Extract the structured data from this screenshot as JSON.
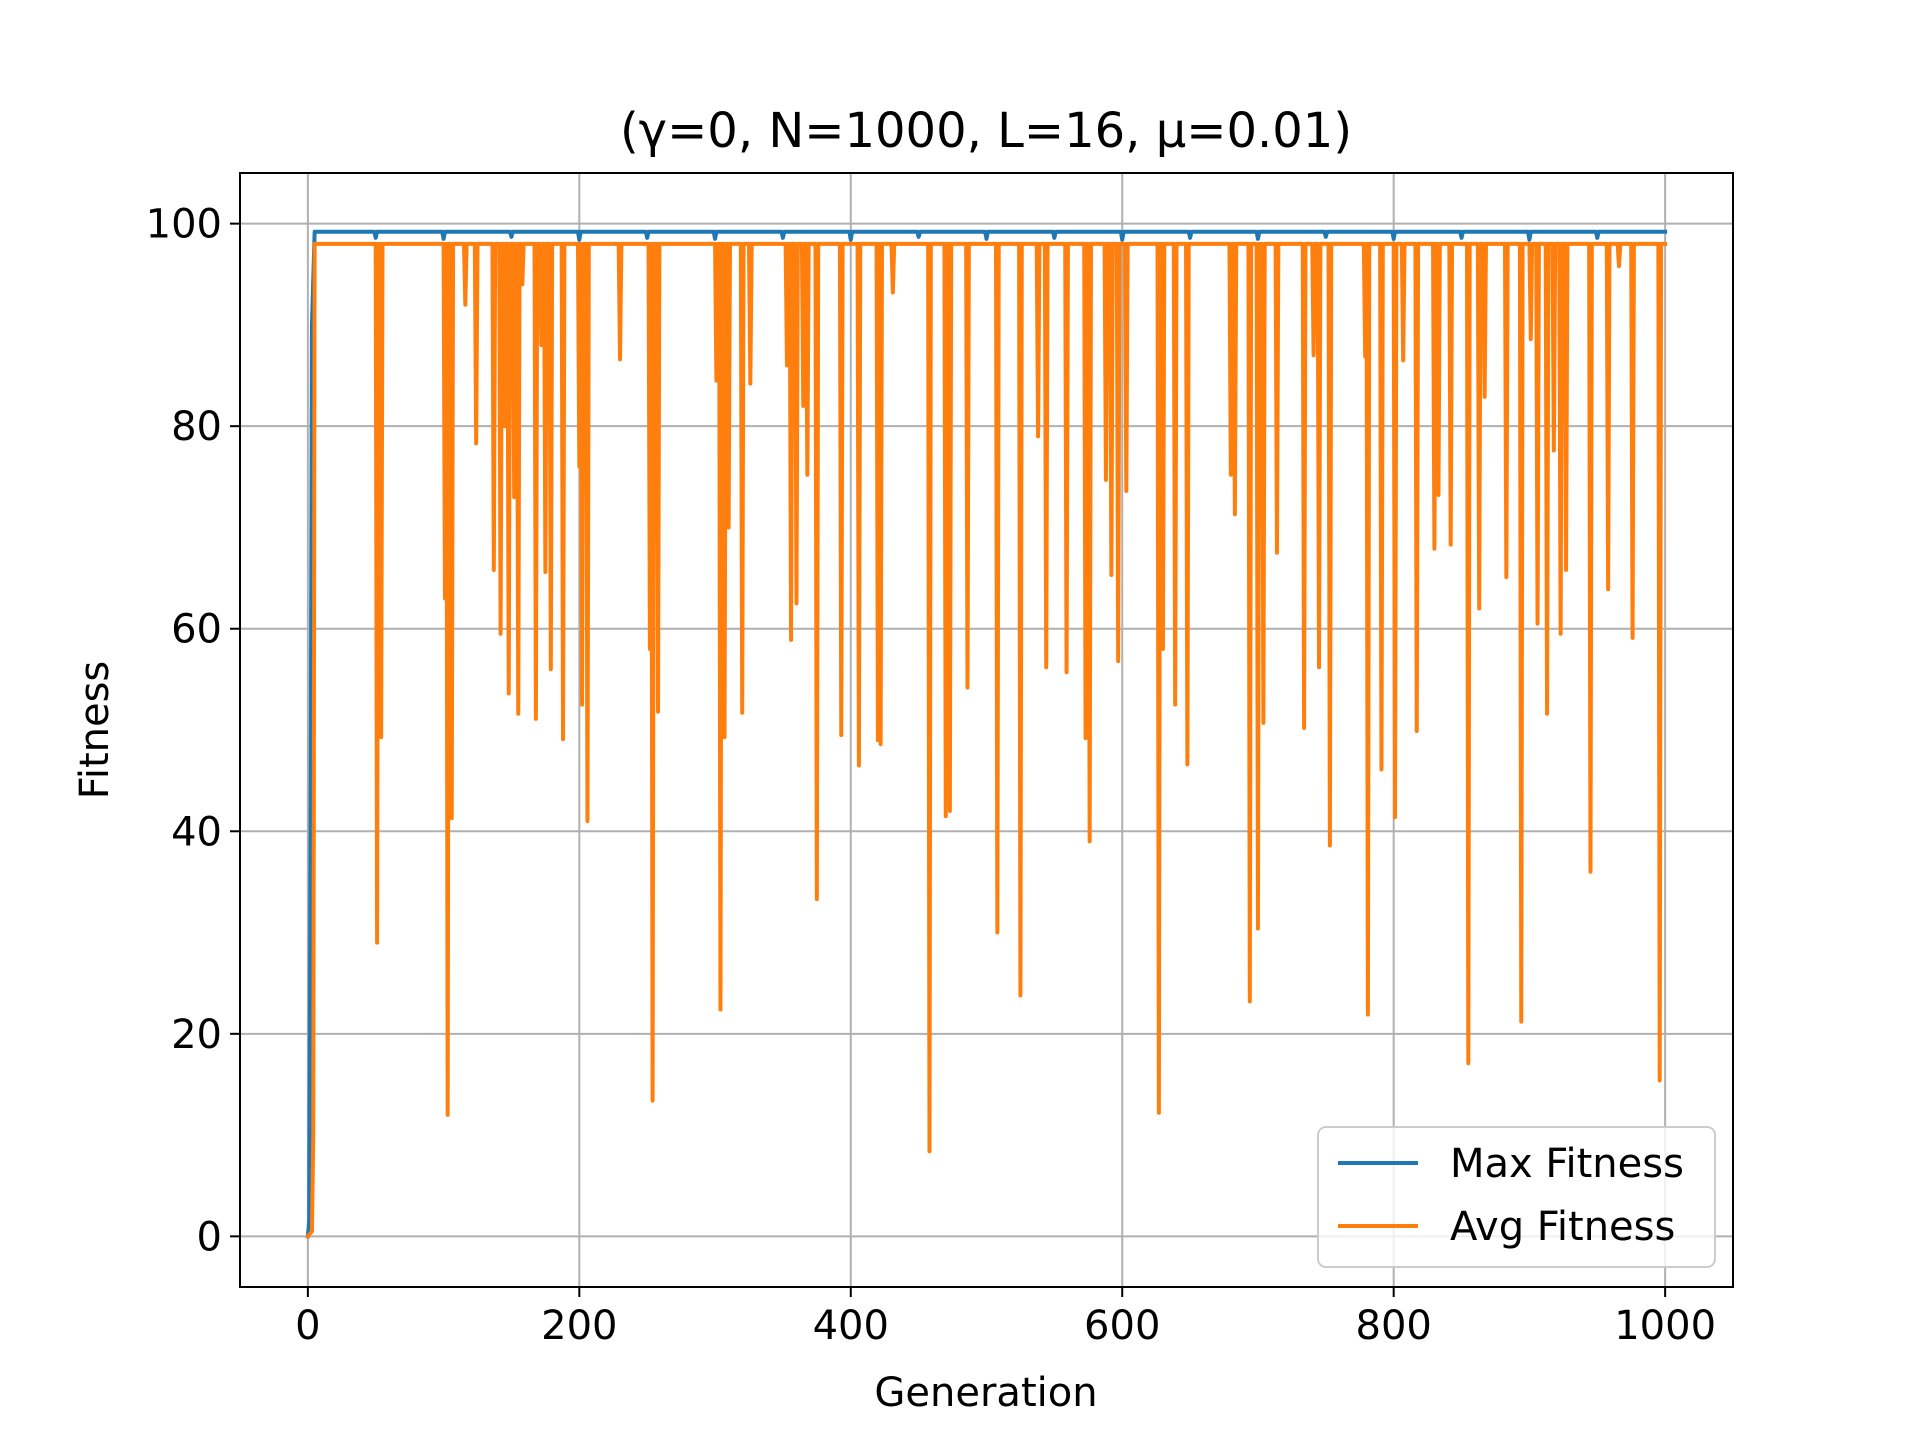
{
  "chart_data": {
    "type": "line",
    "title": "(γ=0, N=1000, L=16, μ=0.01)",
    "xlabel": "Generation",
    "ylabel": "Fitness",
    "xlim": [
      -50,
      1050
    ],
    "ylim": [
      -5,
      105
    ],
    "xticks": [
      0,
      200,
      400,
      600,
      800,
      1000
    ],
    "yticks": [
      0,
      20,
      40,
      60,
      80,
      100
    ],
    "xtick_labels": [
      "0",
      "200",
      "400",
      "600",
      "800",
      "1000"
    ],
    "ytick_labels": [
      "0",
      "20",
      "40",
      "60",
      "80",
      "100"
    ],
    "grid": true,
    "legend_position": "lower-right",
    "series": [
      {
        "name": "Max Fitness",
        "color": "#1f77b4",
        "baseline": 99.2,
        "start": [
          [
            0,
            0
          ],
          [
            1,
            1.5
          ],
          [
            2,
            40
          ],
          [
            3,
            90
          ],
          [
            5,
            99.2
          ]
        ],
        "dips": [
          [
            50,
            98.6
          ],
          [
            100,
            98.5
          ],
          [
            150,
            98.7
          ],
          [
            200,
            98.4
          ],
          [
            250,
            98.6
          ],
          [
            300,
            98.5
          ],
          [
            350,
            98.6
          ],
          [
            400,
            98.4
          ],
          [
            450,
            98.7
          ],
          [
            500,
            98.5
          ],
          [
            550,
            98.6
          ],
          [
            600,
            98.4
          ],
          [
            650,
            98.6
          ],
          [
            700,
            98.5
          ],
          [
            750,
            98.7
          ],
          [
            800,
            98.5
          ],
          [
            850,
            98.6
          ],
          [
            900,
            98.4
          ],
          [
            950,
            98.6
          ]
        ],
        "end": 99.2
      },
      {
        "name": "Avg Fitness",
        "color": "#ff7f0e",
        "baseline": 98.0,
        "start": [
          [
            0,
            0
          ],
          [
            3,
            0.5
          ],
          [
            4,
            10
          ],
          [
            5,
            98.0
          ]
        ],
        "dips": [
          [
            51,
            29
          ],
          [
            54,
            49.3
          ],
          [
            101,
            63
          ],
          [
            103,
            12
          ],
          [
            106,
            41.3
          ],
          [
            116,
            92
          ],
          [
            124,
            78.3
          ],
          [
            137,
            65.8
          ],
          [
            142,
            59.5
          ],
          [
            145,
            80
          ],
          [
            148,
            53.6
          ],
          [
            152,
            73
          ],
          [
            155,
            51.6
          ],
          [
            158,
            94
          ],
          [
            168,
            51.1
          ],
          [
            172,
            88
          ],
          [
            175,
            65.6
          ],
          [
            179,
            56
          ],
          [
            188,
            49.1
          ],
          [
            200,
            76
          ],
          [
            202,
            52.5
          ],
          [
            206,
            41
          ],
          [
            230,
            86.6
          ],
          [
            252,
            58
          ],
          [
            254,
            13.4
          ],
          [
            258,
            51.8
          ],
          [
            301,
            84.5
          ],
          [
            304,
            22.4
          ],
          [
            307,
            49.3
          ],
          [
            310,
            70
          ],
          [
            320,
            51.7
          ],
          [
            326,
            84.2
          ],
          [
            353,
            86
          ],
          [
            356,
            58.9
          ],
          [
            360,
            62.5
          ],
          [
            365,
            82
          ],
          [
            368,
            75.2
          ],
          [
            375,
            33.3
          ],
          [
            393,
            49.5
          ],
          [
            406,
            46.5
          ],
          [
            420,
            49
          ],
          [
            422,
            48.6
          ],
          [
            431,
            93.2
          ],
          [
            458,
            8.4
          ],
          [
            470,
            41.5
          ],
          [
            473,
            42
          ],
          [
            486,
            54.2
          ],
          [
            508,
            30
          ],
          [
            525,
            23.8
          ],
          [
            538,
            79
          ],
          [
            544,
            56.2
          ],
          [
            559,
            55.7
          ],
          [
            573,
            49.2
          ],
          [
            576,
            39
          ],
          [
            588,
            74.7
          ],
          [
            592,
            65.3
          ],
          [
            597,
            56.8
          ],
          [
            603,
            73.6
          ],
          [
            627,
            12.2
          ],
          [
            630,
            58
          ],
          [
            639,
            52.5
          ],
          [
            648,
            46.6
          ],
          [
            680,
            75.2
          ],
          [
            683,
            71.3
          ],
          [
            694,
            23.2
          ],
          [
            700,
            30.4
          ],
          [
            704,
            50.7
          ],
          [
            714,
            67.5
          ],
          [
            734,
            50.2
          ],
          [
            741,
            87
          ],
          [
            745,
            56.2
          ],
          [
            753,
            38.6
          ],
          [
            779,
            86.9
          ],
          [
            781,
            21.9
          ],
          [
            791,
            46.1
          ],
          [
            801,
            41.4
          ],
          [
            807,
            86.5
          ],
          [
            817,
            49.9
          ],
          [
            830,
            67.9
          ],
          [
            833,
            73.2
          ],
          [
            842,
            68.3
          ],
          [
            855,
            17.1
          ],
          [
            863,
            62
          ],
          [
            867,
            82.9
          ],
          [
            883,
            65.1
          ],
          [
            894,
            21.2
          ],
          [
            901,
            88.6
          ],
          [
            906,
            60.5
          ],
          [
            913,
            51.6
          ],
          [
            918,
            77.6
          ],
          [
            923,
            59.5
          ],
          [
            927,
            65.8
          ],
          [
            945,
            36
          ],
          [
            958,
            63.9
          ],
          [
            966,
            95.8
          ],
          [
            976,
            59.1
          ],
          [
            996,
            15.4
          ]
        ],
        "end": 98.0
      }
    ]
  }
}
